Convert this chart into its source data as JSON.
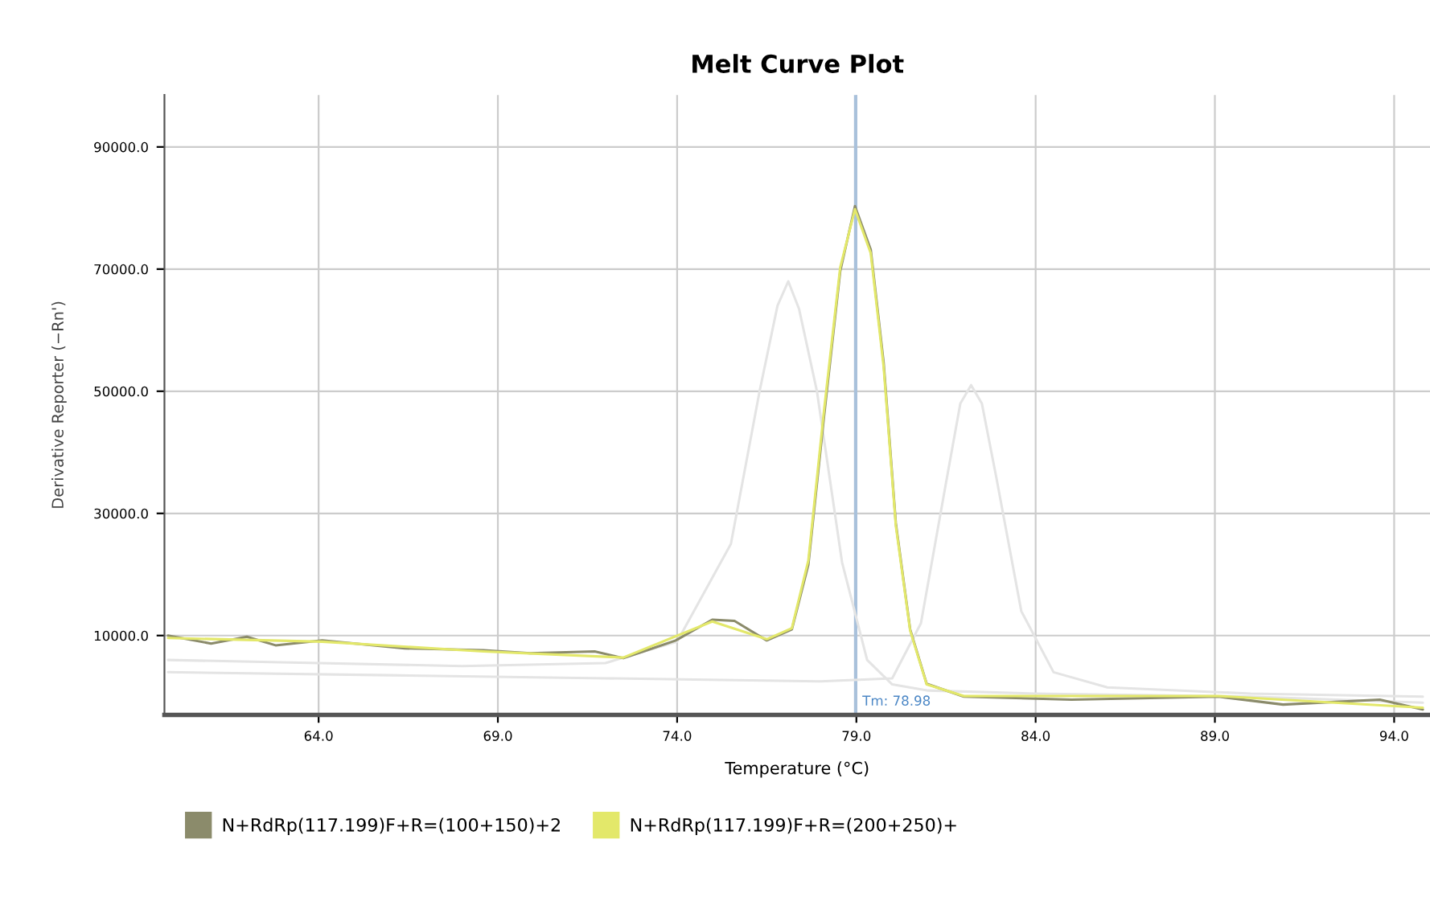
{
  "chart_data": {
    "type": "line",
    "title": "Melt Curve Plot",
    "xlabel": "Temperature (°C)",
    "ylabel": "Derivative Reporter (−Rn')",
    "xlim": [
      59.7,
      95.0
    ],
    "xticks": [
      {
        "value": 64,
        "label": "64.0"
      },
      {
        "value": 69,
        "label": "69.0"
      },
      {
        "value": 74,
        "label": "74.0"
      },
      {
        "value": 79,
        "label": "79.0"
      },
      {
        "value": 84,
        "label": "84.0"
      },
      {
        "value": 89,
        "label": "89.0"
      },
      {
        "value": 94,
        "label": "94.0"
      }
    ],
    "ylim": [
      -3000,
      98500
    ],
    "yticks": [
      {
        "value": 10000,
        "label": "10000.0"
      },
      {
        "value": 30000,
        "label": "30000.0"
      },
      {
        "value": 50000,
        "label": "50000.0"
      },
      {
        "value": 70000,
        "label": "70000.0"
      },
      {
        "value": 90000,
        "label": "90000.0"
      }
    ],
    "grid": true,
    "legend": "bottom",
    "marker": "none",
    "line_style": "solid",
    "ref_lines": [
      {
        "axis": "x",
        "value": 78.98,
        "label": "Tm: 78.98",
        "color": "#a9c1db"
      }
    ],
    "series": [
      {
        "color": "#e4e4e4",
        "x": [
          59.8,
          64.0,
          68.0,
          72.0,
          74.0,
          75.5,
          76.3,
          76.8,
          77.1,
          77.4,
          77.9,
          78.6,
          79.3,
          80.0,
          81.0,
          84.0,
          90.0,
          94.8
        ],
        "values": [
          6000,
          5500,
          5000,
          5500,
          9000,
          25000,
          50000,
          64000,
          68000,
          63500,
          50000,
          22000,
          6000,
          2000,
          1000,
          500,
          0,
          -1000
        ]
      },
      {
        "color": "#e4e4e4",
        "x": [
          59.8,
          66.0,
          72.0,
          78.0,
          80.0,
          80.8,
          81.5,
          81.9,
          82.2,
          82.5,
          82.9,
          83.6,
          84.5,
          86.0,
          90.0,
          94.8
        ],
        "values": [
          4000,
          3500,
          3000,
          2500,
          3000,
          12000,
          35000,
          48000,
          51000,
          48000,
          36000,
          14000,
          4000,
          1500,
          500,
          0
        ]
      },
      {
        "name": "N+RdRp(117.199)F+R=(100+150)+2",
        "color": "#8b8b6b",
        "x": [
          59.8,
          61.0,
          62.0,
          62.8,
          64.1,
          66.4,
          68.6,
          69.9,
          71.7,
          72.5,
          73.06,
          73.96,
          74.98,
          75.6,
          76.5,
          77.2,
          77.66,
          78.1,
          78.55,
          78.96,
          79.4,
          79.76,
          80.1,
          80.5,
          80.96,
          82.0,
          85.0,
          89.1,
          90.9,
          93.6,
          94.8
        ],
        "values": [
          10000,
          8700,
          9800,
          8400,
          9200,
          7900,
          7600,
          7100,
          7400,
          6300,
          7400,
          9200,
          12600,
          12400,
          9200,
          11000,
          21600,
          46000,
          69700,
          80300,
          73200,
          54700,
          28400,
          11000,
          2100,
          0,
          -500,
          0,
          -1300,
          -500,
          -2100
        ]
      },
      {
        "name": "N+RdRp(117.199)F+R=(200+250)+",
        "color": "#e3e86a",
        "x": [
          59.8,
          64.1,
          68.6,
          72.5,
          74.98,
          76.5,
          77.2,
          77.66,
          78.1,
          78.55,
          78.96,
          79.4,
          79.76,
          80.1,
          80.5,
          80.96,
          82.0,
          89.1,
          94.8
        ],
        "values": [
          9600,
          9000,
          7400,
          6400,
          12300,
          9400,
          11200,
          22300,
          47000,
          70300,
          79800,
          72600,
          54000,
          28000,
          10800,
          2000,
          100,
          100,
          -1800
        ]
      }
    ]
  }
}
